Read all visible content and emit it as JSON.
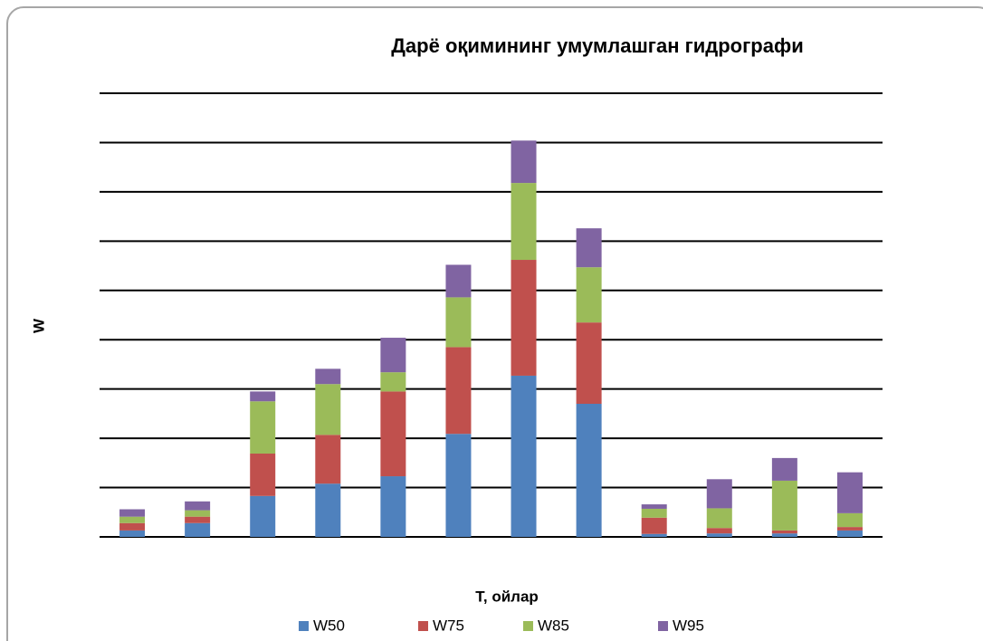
{
  "chart_data": {
    "type": "stacked_bar",
    "title": "Дарё оқимининг умумлашган гидрографи",
    "x_label": "Т, ойлар",
    "y_label": "W",
    "categories": [
      null,
      null,
      null,
      null,
      null,
      null,
      null,
      null,
      null,
      null,
      null,
      null
    ],
    "series": [
      {
        "name": "W50",
        "color": "#4f81bd",
        "values": [
          0.13,
          0.28,
          0.83,
          1.08,
          1.23,
          2.09,
          3.27,
          2.7,
          0.06,
          0.07,
          0.07,
          0.13
        ]
      },
      {
        "name": "W75",
        "color": "#c0504d",
        "values": [
          0.15,
          0.13,
          0.86,
          0.99,
          1.72,
          1.76,
          2.35,
          1.65,
          0.33,
          0.11,
          0.06,
          0.07
        ]
      },
      {
        "name": "W85",
        "color": "#9bbb59",
        "values": [
          0.13,
          0.13,
          1.06,
          1.03,
          0.39,
          1.01,
          1.56,
          1.12,
          0.18,
          0.4,
          1.01,
          0.28
        ]
      },
      {
        "name": "W95",
        "color": "#8064a2",
        "values": [
          0.15,
          0.18,
          0.2,
          0.31,
          0.7,
          0.66,
          0.86,
          0.79,
          0.09,
          0.59,
          0.46,
          0.83
        ]
      }
    ],
    "ylim": [
      0,
      9
    ],
    "yticks": [
      0,
      1,
      2,
      3,
      4,
      5,
      6,
      7,
      8,
      9
    ],
    "grid": true,
    "legend": "bottom"
  }
}
